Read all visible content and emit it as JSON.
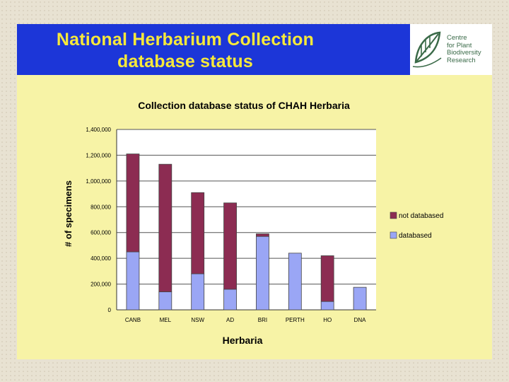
{
  "slide": {
    "title_line1": "National Herbarium Collection",
    "title_line2": "database status"
  },
  "logo": {
    "lines": [
      "Centre",
      "for Plant",
      "Biodiversity",
      "Research"
    ]
  },
  "colors": {
    "title_band": "#1c36d8",
    "title_text": "#f7e93a",
    "slide_bg": "#f7f3a6",
    "databased": "#9aa6f5",
    "not_databased": "#8c2c52"
  },
  "chart_data": {
    "type": "bar",
    "stacked": true,
    "title": "Collection database status of CHAH Herbaria",
    "xlabel": "Herbaria",
    "ylabel": "# of specimens",
    "ylim": [
      0,
      1400000
    ],
    "y_ticks": [
      "0",
      "200,000",
      "400,000",
      "600,000",
      "800,000",
      "1,000,000",
      "1,200,000",
      "1,400,000"
    ],
    "y_tick_values": [
      0,
      200000,
      400000,
      600000,
      800000,
      1000000,
      1200000,
      1400000
    ],
    "grid": true,
    "legend_position": "right",
    "categories": [
      "CANB",
      "MEL",
      "NSW",
      "AD",
      "BRI",
      "PERTH",
      "HO",
      "DNA"
    ],
    "series": [
      {
        "name": "databased",
        "color": "#9aa6f5",
        "values": [
          450000,
          140000,
          280000,
          160000,
          570000,
          440000,
          65000,
          175000
        ]
      },
      {
        "name": "not databased",
        "color": "#8c2c52",
        "values": [
          760000,
          990000,
          630000,
          670000,
          20000,
          0,
          355000,
          0
        ]
      }
    ]
  }
}
